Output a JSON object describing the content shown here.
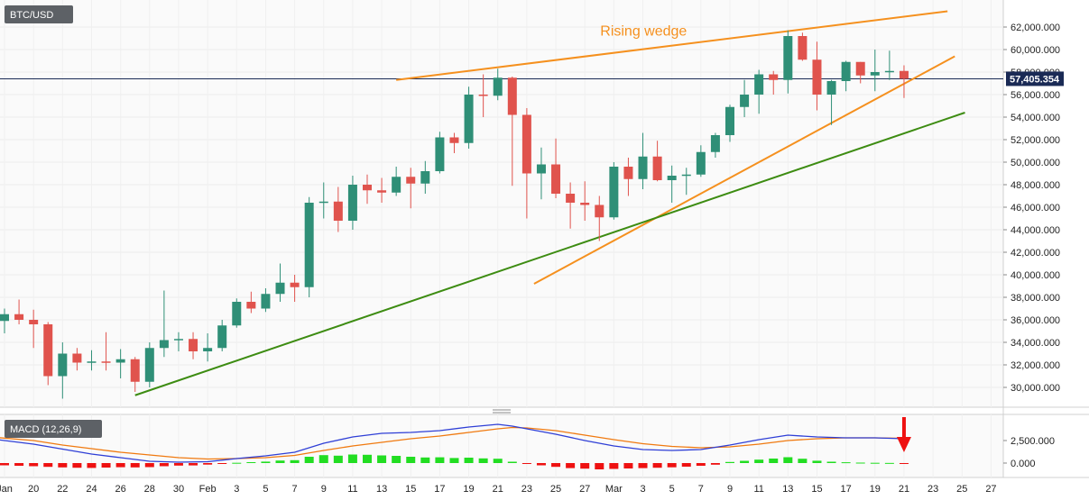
{
  "symbol_label": "BTC/USD",
  "macd_label": "MACD (12,26,9)",
  "current_price_label": "57,405.354",
  "current_price": 57405,
  "annotation": {
    "text": "Rising wedge"
  },
  "colors": {
    "up": "#2f8f77",
    "down": "#e0534d",
    "wedge": "#f5901e",
    "support": "#3d8c12",
    "macd_line": "#2f3fd6",
    "signal_line": "#f07a10",
    "hist_pos": "#22dd22",
    "hist_neg": "#ee1111",
    "arrow": "#ee1111"
  },
  "chart_data": {
    "type": "candlestick",
    "price_axis": {
      "min": 28500,
      "max": 63500,
      "ticks": [
        30000,
        32000,
        34000,
        36000,
        38000,
        40000,
        42000,
        44000,
        46000,
        48000,
        50000,
        52000,
        54000,
        56000,
        58000,
        60000,
        62000
      ],
      "tick_labels": [
        "30,000.000",
        "32,000.000",
        "34,000.000",
        "36,000.000",
        "38,000.000",
        "40,000.000",
        "42,000.000",
        "44,000.000",
        "46,000.000",
        "48,000.000",
        "50,000.000",
        "52,000.000",
        "54,000.000",
        "56,000.000",
        "58,000.000",
        "60,000.000",
        "62,000.000"
      ]
    },
    "macd_axis": {
      "min": -1000,
      "max": 4500,
      "ticks": [
        0,
        2500
      ],
      "tick_labels": [
        "0.000",
        "2,500.000"
      ]
    },
    "x_axis": {
      "start_index": 18,
      "end_index": 86,
      "tick_labels": [
        {
          "i": 18,
          "label": "Jan"
        },
        {
          "i": 20,
          "label": "20"
        },
        {
          "i": 22,
          "label": "22"
        },
        {
          "i": 24,
          "label": "24"
        },
        {
          "i": 26,
          "label": "26"
        },
        {
          "i": 28,
          "label": "28"
        },
        {
          "i": 30,
          "label": "30"
        },
        {
          "i": 32,
          "label": "Feb"
        },
        {
          "i": 34,
          "label": "3"
        },
        {
          "i": 36,
          "label": "5"
        },
        {
          "i": 38,
          "label": "7"
        },
        {
          "i": 40,
          "label": "9"
        },
        {
          "i": 42,
          "label": "11"
        },
        {
          "i": 44,
          "label": "13"
        },
        {
          "i": 46,
          "label": "15"
        },
        {
          "i": 48,
          "label": "17"
        },
        {
          "i": 50,
          "label": "19"
        },
        {
          "i": 52,
          "label": "21"
        },
        {
          "i": 54,
          "label": "23"
        },
        {
          "i": 56,
          "label": "25"
        },
        {
          "i": 58,
          "label": "27"
        },
        {
          "i": 60,
          "label": "Mar"
        },
        {
          "i": 62,
          "label": "3"
        },
        {
          "i": 64,
          "label": "5"
        },
        {
          "i": 66,
          "label": "7"
        },
        {
          "i": 68,
          "label": "9"
        },
        {
          "i": 70,
          "label": "11"
        },
        {
          "i": 72,
          "label": "13"
        },
        {
          "i": 74,
          "label": "15"
        },
        {
          "i": 76,
          "label": "17"
        },
        {
          "i": 78,
          "label": "19"
        },
        {
          "i": 80,
          "label": "21"
        },
        {
          "i": 82,
          "label": "23"
        },
        {
          "i": 84,
          "label": "25"
        },
        {
          "i": 86,
          "label": "27"
        }
      ]
    },
    "candles": [
      {
        "i": 18,
        "o": 35900,
        "h": 37000,
        "l": 34800,
        "c": 36500
      },
      {
        "i": 19,
        "o": 36500,
        "h": 37800,
        "l": 35600,
        "c": 36000
      },
      {
        "i": 20,
        "o": 36000,
        "h": 36900,
        "l": 33500,
        "c": 35600
      },
      {
        "i": 21,
        "o": 35600,
        "h": 35800,
        "l": 30200,
        "c": 31000
      },
      {
        "i": 22,
        "o": 31000,
        "h": 34000,
        "l": 29000,
        "c": 33000
      },
      {
        "i": 23,
        "o": 33000,
        "h": 33500,
        "l": 31500,
        "c": 32200
      },
      {
        "i": 24,
        "o": 32200,
        "h": 33300,
        "l": 31500,
        "c": 32300
      },
      {
        "i": 25,
        "o": 32300,
        "h": 34900,
        "l": 31500,
        "c": 32200
      },
      {
        "i": 26,
        "o": 32200,
        "h": 33400,
        "l": 30800,
        "c": 32500
      },
      {
        "i": 27,
        "o": 32500,
        "h": 32700,
        "l": 29600,
        "c": 30500
      },
      {
        "i": 28,
        "o": 30500,
        "h": 34000,
        "l": 30000,
        "c": 33500
      },
      {
        "i": 29,
        "o": 33500,
        "h": 38600,
        "l": 32700,
        "c": 34200
      },
      {
        "i": 30,
        "o": 34200,
        "h": 34900,
        "l": 33200,
        "c": 34300
      },
      {
        "i": 31,
        "o": 34300,
        "h": 34900,
        "l": 32500,
        "c": 33200
      },
      {
        "i": 32,
        "o": 33200,
        "h": 34800,
        "l": 32300,
        "c": 33500
      },
      {
        "i": 33,
        "o": 33500,
        "h": 36000,
        "l": 33200,
        "c": 35500
      },
      {
        "i": 34,
        "o": 35500,
        "h": 37900,
        "l": 35300,
        "c": 37600
      },
      {
        "i": 35,
        "o": 37600,
        "h": 38500,
        "l": 36600,
        "c": 37000
      },
      {
        "i": 36,
        "o": 37000,
        "h": 38800,
        "l": 36700,
        "c": 38300
      },
      {
        "i": 37,
        "o": 38300,
        "h": 41000,
        "l": 37600,
        "c": 39300
      },
      {
        "i": 38,
        "o": 39300,
        "h": 40000,
        "l": 37600,
        "c": 38900
      },
      {
        "i": 39,
        "o": 38900,
        "h": 46900,
        "l": 38000,
        "c": 46400
      },
      {
        "i": 40,
        "o": 46400,
        "h": 48200,
        "l": 45000,
        "c": 46500
      },
      {
        "i": 41,
        "o": 46500,
        "h": 47800,
        "l": 43800,
        "c": 44800
      },
      {
        "i": 42,
        "o": 44800,
        "h": 48800,
        "l": 44000,
        "c": 48000
      },
      {
        "i": 43,
        "o": 48000,
        "h": 48900,
        "l": 46300,
        "c": 47500
      },
      {
        "i": 44,
        "o": 47500,
        "h": 48600,
        "l": 46400,
        "c": 47300
      },
      {
        "i": 45,
        "o": 47300,
        "h": 49600,
        "l": 47000,
        "c": 48700
      },
      {
        "i": 46,
        "o": 48700,
        "h": 49500,
        "l": 45900,
        "c": 48100
      },
      {
        "i": 47,
        "o": 48100,
        "h": 50100,
        "l": 47200,
        "c": 49200
      },
      {
        "i": 48,
        "o": 49200,
        "h": 52700,
        "l": 49000,
        "c": 52200
      },
      {
        "i": 49,
        "o": 52200,
        "h": 52600,
        "l": 50800,
        "c": 51700
      },
      {
        "i": 50,
        "o": 51700,
        "h": 56700,
        "l": 51200,
        "c": 56000
      },
      {
        "i": 51,
        "o": 56000,
        "h": 57800,
        "l": 54000,
        "c": 55900
      },
      {
        "i": 52,
        "o": 55900,
        "h": 58300,
        "l": 55500,
        "c": 57500
      },
      {
        "i": 53,
        "o": 57500,
        "h": 57600,
        "l": 47900,
        "c": 54200
      },
      {
        "i": 54,
        "o": 54200,
        "h": 54800,
        "l": 45000,
        "c": 49000
      },
      {
        "i": 55,
        "o": 49000,
        "h": 51300,
        "l": 46700,
        "c": 49800
      },
      {
        "i": 56,
        "o": 49800,
        "h": 52100,
        "l": 46800,
        "c": 47200
      },
      {
        "i": 57,
        "o": 47200,
        "h": 48200,
        "l": 44100,
        "c": 46400
      },
      {
        "i": 58,
        "o": 46400,
        "h": 48300,
        "l": 44800,
        "c": 46200
      },
      {
        "i": 59,
        "o": 46200,
        "h": 47000,
        "l": 43000,
        "c": 45100
      },
      {
        "i": 60,
        "o": 45100,
        "h": 50000,
        "l": 44900,
        "c": 49600
      },
      {
        "i": 61,
        "o": 49600,
        "h": 50400,
        "l": 47000,
        "c": 48500
      },
      {
        "i": 62,
        "o": 48500,
        "h": 52600,
        "l": 47600,
        "c": 50500
      },
      {
        "i": 63,
        "o": 50500,
        "h": 51900,
        "l": 48300,
        "c": 48400
      },
      {
        "i": 64,
        "o": 48400,
        "h": 49700,
        "l": 46400,
        "c": 48800
      },
      {
        "i": 65,
        "o": 48800,
        "h": 49500,
        "l": 47100,
        "c": 48900
      },
      {
        "i": 66,
        "o": 48900,
        "h": 51500,
        "l": 48700,
        "c": 50900
      },
      {
        "i": 67,
        "o": 50900,
        "h": 52600,
        "l": 50400,
        "c": 52400
      },
      {
        "i": 68,
        "o": 52400,
        "h": 55100,
        "l": 51800,
        "c": 54900
      },
      {
        "i": 69,
        "o": 54900,
        "h": 57300,
        "l": 54000,
        "c": 56000
      },
      {
        "i": 70,
        "o": 56000,
        "h": 58200,
        "l": 54300,
        "c": 57800
      },
      {
        "i": 71,
        "o": 57800,
        "h": 58100,
        "l": 56000,
        "c": 57300
      },
      {
        "i": 72,
        "o": 57300,
        "h": 61700,
        "l": 56100,
        "c": 61200
      },
      {
        "i": 73,
        "o": 61200,
        "h": 61500,
        "l": 59000,
        "c": 59100
      },
      {
        "i": 74,
        "o": 59100,
        "h": 60700,
        "l": 54600,
        "c": 56000
      },
      {
        "i": 75,
        "o": 56000,
        "h": 57300,
        "l": 53300,
        "c": 57200
      },
      {
        "i": 76,
        "o": 57200,
        "h": 59000,
        "l": 56300,
        "c": 58900
      },
      {
        "i": 77,
        "o": 58900,
        "h": 58900,
        "l": 57000,
        "c": 57700
      },
      {
        "i": 78,
        "o": 57700,
        "h": 60000,
        "l": 56300,
        "c": 58000
      },
      {
        "i": 79,
        "o": 58000,
        "h": 59900,
        "l": 57300,
        "c": 58100
      },
      {
        "i": 80,
        "o": 58100,
        "h": 58600,
        "l": 55700,
        "c": 57405
      }
    ],
    "macd_line": [
      {
        "i": 17,
        "v": 2700
      },
      {
        "i": 20,
        "v": 2100
      },
      {
        "i": 22,
        "v": 1550
      },
      {
        "i": 24,
        "v": 1000
      },
      {
        "i": 26,
        "v": 600
      },
      {
        "i": 28,
        "v": 200
      },
      {
        "i": 30,
        "v": 100
      },
      {
        "i": 32,
        "v": 150
      },
      {
        "i": 34,
        "v": 500
      },
      {
        "i": 36,
        "v": 800
      },
      {
        "i": 38,
        "v": 1200
      },
      {
        "i": 40,
        "v": 2200
      },
      {
        "i": 42,
        "v": 2900
      },
      {
        "i": 44,
        "v": 3300
      },
      {
        "i": 46,
        "v": 3400
      },
      {
        "i": 48,
        "v": 3600
      },
      {
        "i": 50,
        "v": 4000
      },
      {
        "i": 52,
        "v": 4300
      },
      {
        "i": 53,
        "v": 4100
      },
      {
        "i": 54,
        "v": 3800
      },
      {
        "i": 56,
        "v": 3200
      },
      {
        "i": 58,
        "v": 2500
      },
      {
        "i": 60,
        "v": 1900
      },
      {
        "i": 62,
        "v": 1500
      },
      {
        "i": 64,
        "v": 1400
      },
      {
        "i": 66,
        "v": 1500
      },
      {
        "i": 68,
        "v": 2000
      },
      {
        "i": 70,
        "v": 2600
      },
      {
        "i": 72,
        "v": 3100
      },
      {
        "i": 74,
        "v": 2900
      },
      {
        "i": 76,
        "v": 2800
      },
      {
        "i": 78,
        "v": 2800
      },
      {
        "i": 80,
        "v": 2700
      }
    ],
    "signal_line": [
      {
        "i": 17,
        "v": 2900
      },
      {
        "i": 20,
        "v": 2500
      },
      {
        "i": 22,
        "v": 2000
      },
      {
        "i": 24,
        "v": 1600
      },
      {
        "i": 26,
        "v": 1200
      },
      {
        "i": 28,
        "v": 900
      },
      {
        "i": 30,
        "v": 600
      },
      {
        "i": 32,
        "v": 450
      },
      {
        "i": 34,
        "v": 500
      },
      {
        "i": 36,
        "v": 600
      },
      {
        "i": 38,
        "v": 850
      },
      {
        "i": 40,
        "v": 1400
      },
      {
        "i": 42,
        "v": 1900
      },
      {
        "i": 44,
        "v": 2300
      },
      {
        "i": 46,
        "v": 2700
      },
      {
        "i": 48,
        "v": 3000
      },
      {
        "i": 50,
        "v": 3400
      },
      {
        "i": 52,
        "v": 3800
      },
      {
        "i": 53,
        "v": 3950
      },
      {
        "i": 54,
        "v": 3900
      },
      {
        "i": 56,
        "v": 3600
      },
      {
        "i": 58,
        "v": 3100
      },
      {
        "i": 60,
        "v": 2600
      },
      {
        "i": 62,
        "v": 2150
      },
      {
        "i": 64,
        "v": 1850
      },
      {
        "i": 66,
        "v": 1700
      },
      {
        "i": 68,
        "v": 1800
      },
      {
        "i": 70,
        "v": 2100
      },
      {
        "i": 72,
        "v": 2500
      },
      {
        "i": 74,
        "v": 2700
      },
      {
        "i": 76,
        "v": 2800
      },
      {
        "i": 78,
        "v": 2800
      },
      {
        "i": 80,
        "v": 2750
      }
    ],
    "histogram": [
      {
        "i": 18,
        "v": -250
      },
      {
        "i": 19,
        "v": -300
      },
      {
        "i": 20,
        "v": -350
      },
      {
        "i": 21,
        "v": -420
      },
      {
        "i": 22,
        "v": -480
      },
      {
        "i": 23,
        "v": -520
      },
      {
        "i": 24,
        "v": -540
      },
      {
        "i": 25,
        "v": -500
      },
      {
        "i": 26,
        "v": -460
      },
      {
        "i": 27,
        "v": -480
      },
      {
        "i": 28,
        "v": -450
      },
      {
        "i": 29,
        "v": -350
      },
      {
        "i": 30,
        "v": -280
      },
      {
        "i": 31,
        "v": -260
      },
      {
        "i": 32,
        "v": -170
      },
      {
        "i": 33,
        "v": -60
      },
      {
        "i": 34,
        "v": 30
      },
      {
        "i": 35,
        "v": 100
      },
      {
        "i": 36,
        "v": 160
      },
      {
        "i": 37,
        "v": 280
      },
      {
        "i": 38,
        "v": 320
      },
      {
        "i": 39,
        "v": 700
      },
      {
        "i": 40,
        "v": 880
      },
      {
        "i": 41,
        "v": 820
      },
      {
        "i": 42,
        "v": 950
      },
      {
        "i": 43,
        "v": 920
      },
      {
        "i": 44,
        "v": 850
      },
      {
        "i": 45,
        "v": 800
      },
      {
        "i": 46,
        "v": 700
      },
      {
        "i": 47,
        "v": 620
      },
      {
        "i": 48,
        "v": 640
      },
      {
        "i": 49,
        "v": 560
      },
      {
        "i": 50,
        "v": 600
      },
      {
        "i": 51,
        "v": 520
      },
      {
        "i": 52,
        "v": 480
      },
      {
        "i": 53,
        "v": 150
      },
      {
        "i": 54,
        "v": -80
      },
      {
        "i": 55,
        "v": -250
      },
      {
        "i": 56,
        "v": -420
      },
      {
        "i": 57,
        "v": -560
      },
      {
        "i": 58,
        "v": -620
      },
      {
        "i": 59,
        "v": -700
      },
      {
        "i": 60,
        "v": -650
      },
      {
        "i": 61,
        "v": -600
      },
      {
        "i": 62,
        "v": -560
      },
      {
        "i": 63,
        "v": -520
      },
      {
        "i": 64,
        "v": -470
      },
      {
        "i": 65,
        "v": -400
      },
      {
        "i": 66,
        "v": -300
      },
      {
        "i": 67,
        "v": -180
      },
      {
        "i": 68,
        "v": 120
      },
      {
        "i": 69,
        "v": 250
      },
      {
        "i": 70,
        "v": 380
      },
      {
        "i": 71,
        "v": 500
      },
      {
        "i": 72,
        "v": 650
      },
      {
        "i": 73,
        "v": 480
      },
      {
        "i": 74,
        "v": 260
      },
      {
        "i": 75,
        "v": 150
      },
      {
        "i": 76,
        "v": 90
      },
      {
        "i": 77,
        "v": 50
      },
      {
        "i": 78,
        "v": 30
      },
      {
        "i": 79,
        "v": 15
      },
      {
        "i": 80,
        "v": -60
      }
    ],
    "trendlines": [
      {
        "name": "wedge-upper",
        "color_key": "wedge",
        "p1": {
          "i": 45,
          "v": 57300
        },
        "p2": {
          "i": 83,
          "v": 63400
        }
      },
      {
        "name": "wedge-lower",
        "color_key": "wedge",
        "p1": {
          "i": 54.5,
          "v": 39200
        },
        "p2": {
          "i": 83.5,
          "v": 59400
        }
      },
      {
        "name": "support",
        "color_key": "support",
        "p1": {
          "i": 27,
          "v": 29300
        },
        "p2": {
          "i": 84.2,
          "v": 54400
        }
      }
    ],
    "annotation_anchor": {
      "i": 71.5,
      "v": 61000
    }
  }
}
